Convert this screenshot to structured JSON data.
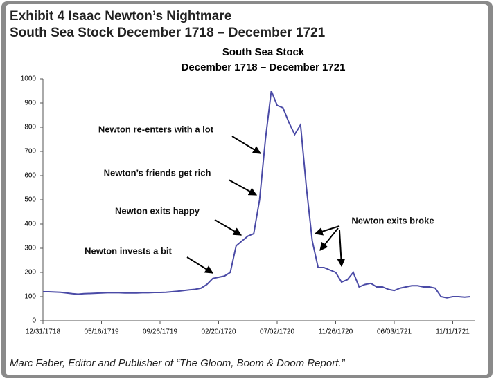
{
  "header": {
    "title": "Exhibit 4  Isaac Newton’s Nightmare",
    "subtitle": "South Sea Stock December 1718 – December 1721"
  },
  "footer": "Marc Faber, Editor and Publisher of “The Gloom, Boom & Doom Report.”",
  "chart_data": {
    "type": "line",
    "title": "South Sea Stock",
    "subtitle": "December 1718 – December 1721",
    "categories": [
      "12/31/1718",
      null,
      null,
      null,
      null,
      null,
      null,
      null,
      null,
      null,
      "05/16/1719",
      null,
      null,
      null,
      null,
      null,
      null,
      null,
      null,
      null,
      "09/26/1719",
      null,
      null,
      null,
      null,
      null,
      null,
      null,
      null,
      null,
      "02/20/1720",
      null,
      null,
      null,
      null,
      null,
      null,
      null,
      null,
      null,
      "07/02/1720",
      null,
      null,
      null,
      null,
      null,
      null,
      null,
      null,
      null,
      "11/26/1720",
      null,
      null,
      null,
      null,
      null,
      null,
      null,
      null,
      null,
      "06/03/1721",
      null,
      null,
      null,
      null,
      null,
      null,
      null,
      null,
      null,
      "11/11/1721",
      null,
      null,
      null
    ],
    "series": [
      {
        "name": "South Sea Stock",
        "color": "#4a4aa6",
        "values": [
          120,
          120,
          119,
          118,
          115,
          112,
          110,
          112,
          113,
          114,
          115,
          116,
          116,
          116,
          115,
          115,
          115,
          116,
          116,
          117,
          117,
          118,
          120,
          122,
          125,
          128,
          130,
          135,
          150,
          175,
          180,
          185,
          200,
          310,
          330,
          350,
          360,
          500,
          750,
          950,
          890,
          880,
          820,
          770,
          810,
          550,
          330,
          220,
          220,
          210,
          200,
          160,
          170,
          200,
          140,
          150,
          155,
          140,
          140,
          130,
          125,
          135,
          140,
          145,
          145,
          140,
          140,
          135,
          100,
          95,
          100,
          100,
          98,
          100
        ]
      }
    ],
    "ylim": [
      0,
      1000
    ],
    "yticks": [
      0,
      100,
      200,
      300,
      400,
      500,
      600,
      700,
      800,
      900,
      1000
    ],
    "annotations": [
      "Newton re-enters with a lot",
      "Newton’s friends get rich",
      "Newton exits happy",
      "Newton invests a bit",
      "Newton exits broke"
    ]
  }
}
